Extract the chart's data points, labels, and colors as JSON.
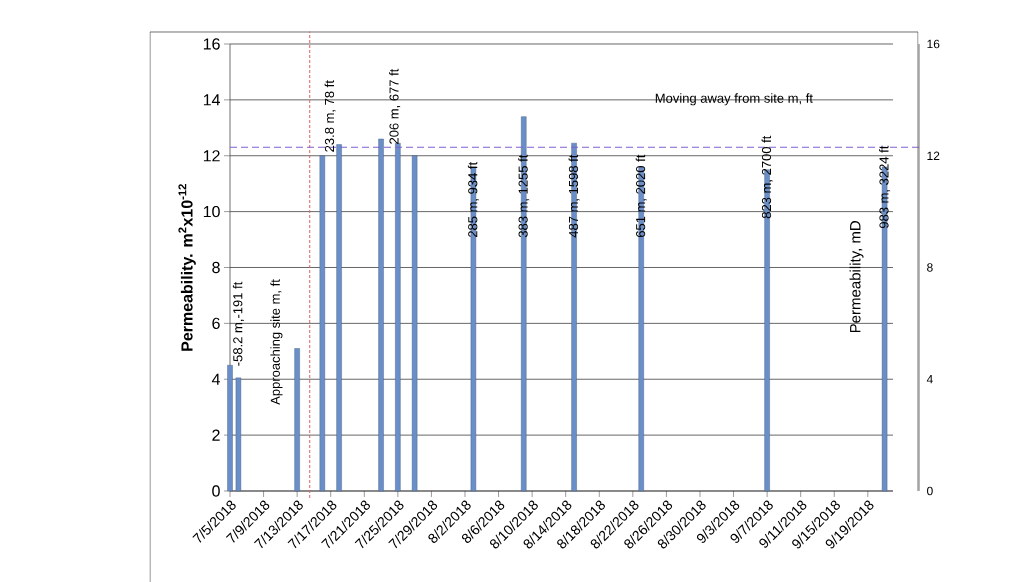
{
  "chart_data": {
    "type": "bar",
    "ylabel": "Permeability. m$^{2}$x10$^{-12}$",
    "y2label": "Permeability, mD",
    "x": [
      "2018-07-05",
      "2018-07-06",
      "2018-07-13",
      "2018-07-16",
      "2018-07-18",
      "2018-07-23",
      "2018-07-25",
      "2018-07-27",
      "2018-08-03",
      "2018-08-09",
      "2018-08-15",
      "2018-08-23",
      "2018-09-07",
      "2018-09-21"
    ],
    "values": [
      4.5,
      4.05,
      5.1,
      12.0,
      12.4,
      12.6,
      12.45,
      12.0,
      11.6,
      13.4,
      12.45,
      11.6,
      11.5,
      11.6
    ],
    "color": "#6a8fc8",
    "xlim": [
      "2018-07-05",
      "2018-09-22"
    ],
    "xticks": [
      {
        "value": "2018-07-05",
        "label": "7/5/2018"
      },
      {
        "value": "2018-07-09",
        "label": "7/9/2018"
      },
      {
        "value": "2018-07-13",
        "label": "7/13/2018"
      },
      {
        "value": "2018-07-17",
        "label": "7/17/2018"
      },
      {
        "value": "2018-07-21",
        "label": "7/21/2018"
      },
      {
        "value": "2018-07-25",
        "label": "7/25/2018"
      },
      {
        "value": "2018-07-29",
        "label": "7/29/2018"
      },
      {
        "value": "2018-08-02",
        "label": "8/2/2018"
      },
      {
        "value": "2018-08-06",
        "label": "8/6/2018"
      },
      {
        "value": "2018-08-10",
        "label": "8/10/2018"
      },
      {
        "value": "2018-08-14",
        "label": "8/14/2018"
      },
      {
        "value": "2018-08-18",
        "label": "8/18/2018"
      },
      {
        "value": "2018-08-22",
        "label": "8/22/2018"
      },
      {
        "value": "2018-08-26",
        "label": "8/26/2018"
      },
      {
        "value": "2018-08-30",
        "label": "8/30/2018"
      },
      {
        "value": "2018-09-03",
        "label": "9/3/2018"
      },
      {
        "value": "2018-09-07",
        "label": "9/7/2018"
      },
      {
        "value": "2018-09-11",
        "label": "9/11/2018"
      },
      {
        "value": "2018-09-15",
        "label": "9/15/2018"
      },
      {
        "value": "2018-09-19",
        "label": "9/19/2018"
      }
    ],
    "ylim": [
      0,
      16
    ],
    "yticks": [
      0,
      2,
      4,
      6,
      8,
      10,
      12,
      14,
      16
    ],
    "y2lim": [
      0,
      16
    ],
    "y2ticks": [
      0,
      4,
      8,
      12,
      16
    ],
    "grid": "y",
    "ref_lines": [
      {
        "axis": "x",
        "value": "2018-07-14T12:00",
        "color": "#e06060",
        "line_style": "dotted"
      },
      {
        "axis": "y",
        "value": 12.3,
        "color": "#8060d0",
        "line_style": "dashed"
      }
    ],
    "annotations": [
      {
        "text": "-58.2 m,-191 ft",
        "x": "2018-07-06",
        "y": 4.1
      },
      "Approaching site m, ft",
      {
        "text": "23.8 m, 78 ft",
        "x": "2018-07-18",
        "y": 12.4
      },
      {
        "text": "206 m, 677 ft",
        "x": "2018-07-27",
        "y": 12.0
      },
      {
        "text": "285 m, 934 ft",
        "x": "2018-08-03",
        "y": 8.7
      },
      {
        "text": "383 m, 1255 ft",
        "x": "2018-08-09",
        "y": 8.7
      },
      {
        "text": "487 m, 1598 ft",
        "x": "2018-08-15",
        "y": 8.7
      },
      {
        "text": "651 m, 2020 ft",
        "x": "2018-08-23",
        "y": 8.7
      },
      {
        "text": "823 m, 2700 ft",
        "x": "2018-09-07",
        "y": 9.2
      },
      {
        "text": "983 m, 3224 ft",
        "x": "2018-09-21",
        "y": 8.7
      },
      "Moving away from site m, ft"
    ]
  }
}
